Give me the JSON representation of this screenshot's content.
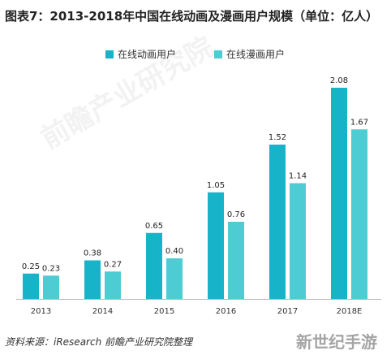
{
  "title": "图表7：2013-2018年中国在线动画及漫画用户规模（单位：亿人）",
  "source": "资料来源：iResearch  前瞻产业研究院整理",
  "watermark_text": "新世纪手游",
  "background_watermark_text": "前瞻产业研究院",
  "colors": {
    "series1": "#17b3c9",
    "series2": "#4dccd3"
  },
  "chart_data": {
    "type": "bar",
    "categories": [
      "2013",
      "2014",
      "2015",
      "2016",
      "2017",
      "2018E"
    ],
    "series": [
      {
        "name": "在线动画用户",
        "values": [
          0.25,
          0.38,
          0.65,
          1.05,
          1.52,
          2.08
        ]
      },
      {
        "name": "在线漫画用户",
        "values": [
          0.23,
          0.27,
          0.4,
          0.76,
          1.14,
          1.67
        ]
      }
    ],
    "ylim": [
      0,
      2.08
    ],
    "grid": false,
    "legend_position": "top-left"
  }
}
